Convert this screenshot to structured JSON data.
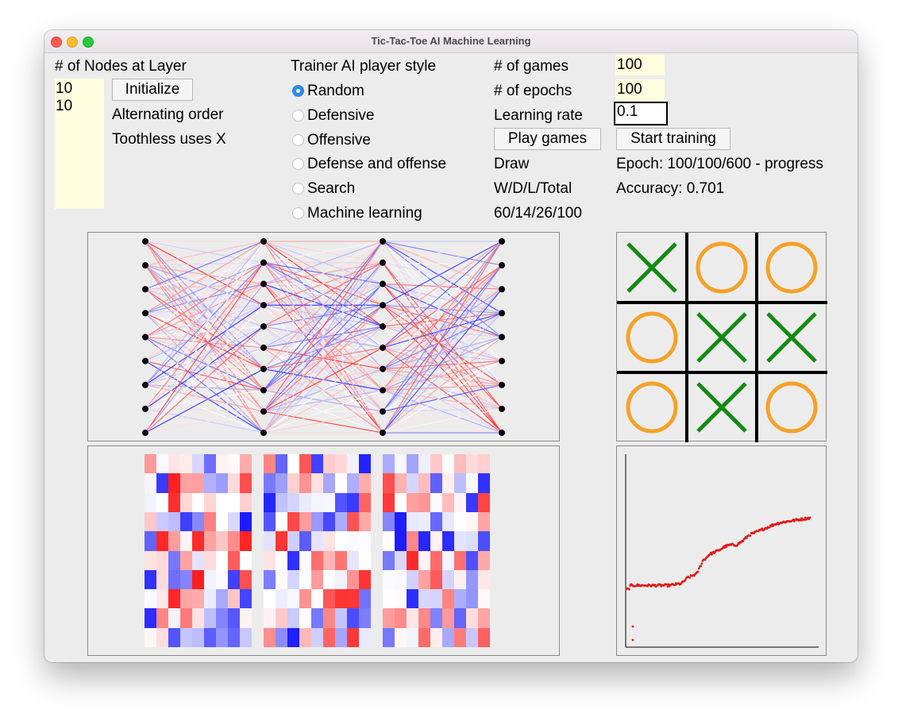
{
  "window": {
    "title": "Tic-Tac-Toe AI Machine Learning"
  },
  "layers": {
    "label": "# of Nodes at Layer",
    "values": [
      "10",
      "10"
    ],
    "initialize_label": "Initialize",
    "order_text": "Alternating order",
    "toothless_text": "Toothless uses X"
  },
  "trainer": {
    "label": "Trainer AI player style",
    "options": [
      "Random",
      "Defensive",
      "Offensive",
      "Defense and offense",
      "Search",
      "Machine learning"
    ],
    "selected": "Random"
  },
  "games": {
    "games_label": "# of games",
    "games_value": "100",
    "epochs_label": "# of epochs",
    "epochs_value": "100",
    "rate_label": "Learning rate",
    "rate_value": "0.1",
    "play_label": "Play games",
    "train_label": "Start training",
    "result_text": "Draw",
    "wdl_label": "W/D/L/Total",
    "wdl_value": "60/14/26/100",
    "epoch_text": "Epoch: 100/100/600 - progress",
    "accuracy_text": "Accuracy: 0.701"
  },
  "board": [
    "X",
    "O",
    "O",
    "O",
    "X",
    "X",
    "O",
    "X",
    "O"
  ],
  "colors": {
    "x_mark": "#138a13",
    "o_mark": "#f4a22a",
    "positive_weight": "#e8171e",
    "negative_weight": "#1a2fe8",
    "accuracy_points": "#e01a1a"
  },
  "network": {
    "layer_sizes": [
      9,
      10,
      10,
      9
    ]
  },
  "accuracy_curve": {
    "epochs": 600,
    "points": [
      [
        0,
        0.3
      ],
      [
        8,
        0.3
      ],
      [
        10,
        0.31
      ],
      [
        15,
        0.32
      ],
      [
        30,
        0.32
      ],
      [
        60,
        0.32
      ],
      [
        100,
        0.32
      ],
      [
        140,
        0.32
      ],
      [
        180,
        0.33
      ],
      [
        200,
        0.36
      ],
      [
        215,
        0.37
      ],
      [
        230,
        0.38
      ],
      [
        250,
        0.45
      ],
      [
        260,
        0.46
      ],
      [
        270,
        0.48
      ],
      [
        285,
        0.49
      ],
      [
        300,
        0.5
      ],
      [
        320,
        0.52
      ],
      [
        340,
        0.53
      ],
      [
        360,
        0.53
      ],
      [
        380,
        0.55
      ],
      [
        400,
        0.58
      ],
      [
        430,
        0.6
      ],
      [
        460,
        0.62
      ],
      [
        490,
        0.64
      ],
      [
        520,
        0.65
      ],
      [
        560,
        0.66
      ],
      [
        600,
        0.67
      ]
    ]
  }
}
